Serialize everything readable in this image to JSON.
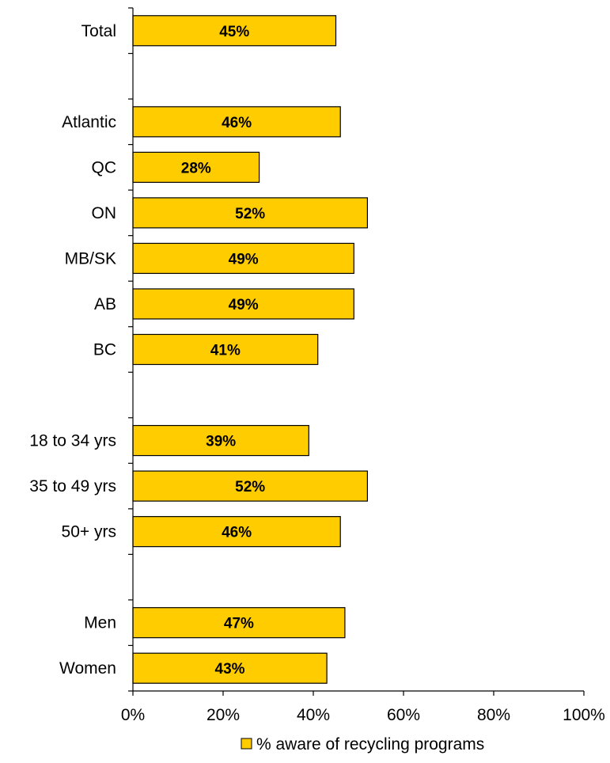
{
  "chart_data": {
    "type": "bar",
    "orientation": "horizontal",
    "categories": [
      "Total",
      "Atlantic",
      "QC",
      "ON",
      "MB/SK",
      "AB",
      "BC",
      "18 to 34 yrs",
      "35 to 49 yrs",
      "50+ yrs",
      "Men",
      "Women"
    ],
    "groups": [
      [
        "Total"
      ],
      [
        "Atlantic",
        "QC",
        "ON",
        "MB/SK",
        "AB",
        "BC"
      ],
      [
        "18 to 34 yrs",
        "35 to 49 yrs",
        "50+ yrs"
      ],
      [
        "Men",
        "Women"
      ]
    ],
    "series": [
      {
        "name": "% aware of recycling programs",
        "values": [
          45,
          46,
          28,
          52,
          49,
          49,
          41,
          39,
          52,
          46,
          47,
          43
        ],
        "labels": [
          "45%",
          "46%",
          "28%",
          "52%",
          "49%",
          "49%",
          "41%",
          "39%",
          "52%",
          "46%",
          "47%",
          "43%"
        ]
      }
    ],
    "xlim": [
      0,
      100
    ],
    "xticks": [
      0,
      20,
      40,
      60,
      80,
      100
    ],
    "xtick_labels": [
      "0%",
      "20%",
      "40%",
      "60%",
      "80%",
      "100%"
    ],
    "grid": false,
    "legend_position": "bottom",
    "bar_color": "#FFCC00",
    "bar_edge_color": "#000000"
  }
}
